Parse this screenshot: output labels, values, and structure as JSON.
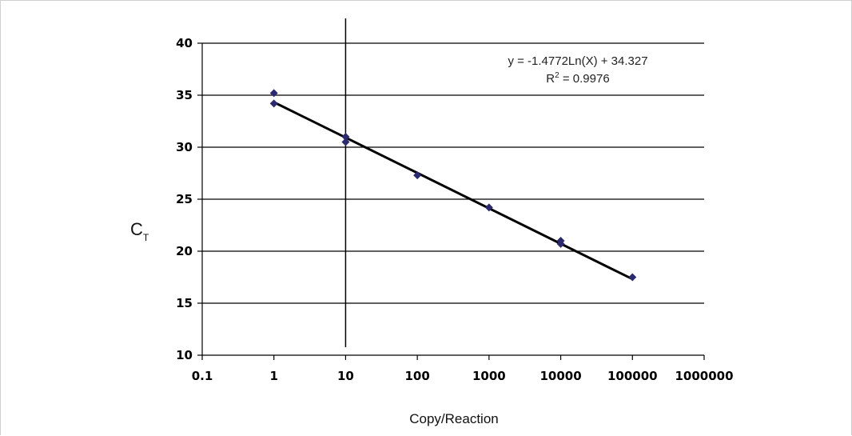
{
  "chart_data": {
    "type": "scatter",
    "x_scale": "log",
    "xlabel": "Copy/Reaction",
    "ylabel": "C",
    "ylabel_subscript": "T",
    "xlim": [
      0.1,
      1000000
    ],
    "ylim": [
      10,
      40
    ],
    "x_ticks": [
      0.1,
      1,
      10,
      100,
      1000,
      10000,
      100000,
      1000000
    ],
    "x_tick_labels": [
      "0.1",
      "1",
      "10",
      "100",
      "1000",
      "10000",
      "100000",
      "1000000"
    ],
    "y_ticks": [
      10,
      15,
      20,
      25,
      30,
      35,
      40
    ],
    "y_tick_labels": [
      "10",
      "15",
      "20",
      "25",
      "30",
      "35",
      "40"
    ],
    "grid": "horizontal",
    "vertical_marker_x": 10,
    "series": [
      {
        "x": [
          1,
          1,
          10,
          10,
          100,
          1000,
          10000,
          10000,
          100000
        ],
        "y": [
          35.2,
          34.2,
          31.0,
          30.5,
          27.3,
          24.2,
          21.0,
          20.7,
          17.5
        ],
        "color": "#2b2a6e",
        "marker": "diamond"
      }
    ],
    "trendline": {
      "type": "logarithmic",
      "slope": -1.4772,
      "intercept": 34.327,
      "x_from": 1,
      "x_to": 100000,
      "color": "#000000"
    },
    "annotations": {
      "equation": "y = -1.4772Ln(X) + 34.327",
      "r2_prefix": "R",
      "r2_sup": "2",
      "r2_value": " = 0.9976"
    }
  }
}
